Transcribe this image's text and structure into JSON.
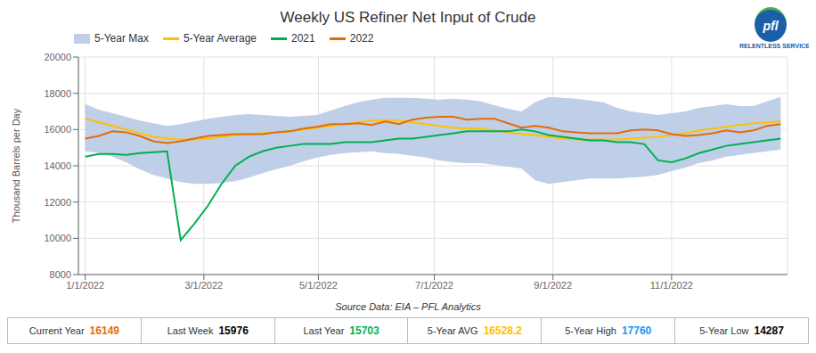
{
  "chart_data": {
    "type": "line",
    "title": "Weekly US Refiner Net Input of Crude",
    "ylabel": "Thousand Barrels per Day",
    "annotations": [
      "Source Data: EIA – PFL Analytics",
      "pfl",
      "RELENTLESS SERVICE"
    ],
    "x": [
      0,
      1,
      2,
      3,
      4,
      5,
      6,
      7,
      8,
      9,
      10,
      11,
      12,
      13,
      14,
      15,
      16,
      17,
      18,
      19,
      20,
      21,
      22,
      23,
      24,
      25,
      26,
      27,
      28,
      29,
      30,
      31,
      32,
      33,
      34,
      35,
      36,
      37,
      38,
      39,
      40,
      41,
      42,
      43,
      44,
      45,
      46,
      47,
      48,
      49,
      50,
      51
    ],
    "xlim": [
      -0.5,
      51.5
    ],
    "xticks": [
      {
        "value": 0,
        "label": "1/1/2022"
      },
      {
        "value": 8.7,
        "label": "3/1/2022"
      },
      {
        "value": 17.1,
        "label": "5/1/2022"
      },
      {
        "value": 25.6,
        "label": "7/1/2022"
      },
      {
        "value": 34.3,
        "label": "9/1/2022"
      },
      {
        "value": 43.0,
        "label": "11/1/2022"
      }
    ],
    "ylim": [
      8000,
      20000
    ],
    "yticks": [
      8000,
      10000,
      12000,
      14000,
      16000,
      18000,
      20000
    ],
    "grid": true,
    "legend": "top left",
    "series": [
      {
        "name": "5-Year Max",
        "type": "band",
        "color": "#bfcfe8",
        "values": [
          17400,
          17100,
          16900,
          16700,
          16500,
          16350,
          16200,
          16300,
          16450,
          16600,
          16700,
          16800,
          16850,
          16800,
          16750,
          16700,
          16750,
          16800,
          17050,
          17300,
          17500,
          17650,
          17750,
          17750,
          17750,
          17700,
          17650,
          17700,
          17650,
          17550,
          17350,
          17150,
          17000,
          17500,
          17800,
          17750,
          17700,
          17600,
          17500,
          17200,
          17000,
          16900,
          16800,
          16900,
          17000,
          17200,
          17300,
          17400,
          17300,
          17300,
          17550,
          17800
        ],
        "lower": [
          14800,
          14700,
          14500,
          14200,
          13800,
          13500,
          13300,
          13100,
          13000,
          13000,
          13050,
          13150,
          13350,
          13600,
          13800,
          14000,
          14250,
          14450,
          14600,
          14700,
          14750,
          14800,
          14700,
          14650,
          14550,
          14450,
          14300,
          14200,
          14150,
          14150,
          14050,
          13950,
          13850,
          13200,
          13000,
          13100,
          13200,
          13300,
          13300,
          13300,
          13350,
          13400,
          13500,
          13700,
          13900,
          14150,
          14300,
          14500,
          14600,
          14700,
          14800,
          14900
        ]
      },
      {
        "name": "5-Year Average",
        "type": "line",
        "color": "#FFC000",
        "values": [
          16600,
          16400,
          16200,
          16000,
          15800,
          15600,
          15500,
          15450,
          15450,
          15500,
          15600,
          15700,
          15750,
          15800,
          15850,
          15900,
          16000,
          16100,
          16200,
          16300,
          16400,
          16500,
          16500,
          16500,
          16400,
          16300,
          16200,
          16100,
          16050,
          16050,
          15950,
          15850,
          15750,
          15700,
          15600,
          15500,
          15450,
          15450,
          15450,
          15450,
          15500,
          15550,
          15600,
          15700,
          15800,
          15950,
          16050,
          16150,
          16250,
          16350,
          16400,
          16450
        ]
      },
      {
        "name": "2021",
        "type": "line",
        "color": "#00B050",
        "values": [
          14500,
          14650,
          14650,
          14600,
          14700,
          14750,
          14800,
          9900,
          10800,
          11800,
          13000,
          14000,
          14500,
          14800,
          15000,
          15100,
          15200,
          15200,
          15200,
          15300,
          15300,
          15300,
          15400,
          15500,
          15500,
          15600,
          15700,
          15800,
          15900,
          15900,
          15900,
          15900,
          16000,
          15900,
          15700,
          15600,
          15500,
          15400,
          15400,
          15300,
          15300,
          15200,
          14300,
          14200,
          14400,
          14700,
          14900,
          15100,
          15200,
          15300,
          15400,
          15500
        ]
      },
      {
        "name": "2022",
        "type": "line",
        "color": "#E36C09",
        "values": [
          15500,
          15650,
          15900,
          15850,
          15650,
          15350,
          15250,
          15350,
          15500,
          15650,
          15700,
          15750,
          15750,
          15750,
          15850,
          15900,
          16050,
          16150,
          16300,
          16300,
          16350,
          16250,
          16450,
          16300,
          16550,
          16650,
          16700,
          16700,
          16550,
          16600,
          16600,
          16350,
          16100,
          16200,
          16100,
          15900,
          15850,
          15800,
          15800,
          15800,
          15950,
          16000,
          15950,
          15750,
          15650,
          15700,
          15800,
          15950,
          15850,
          15950,
          16200,
          16300
        ]
      }
    ],
    "stats": [
      {
        "label": "Current Year",
        "value": 16149,
        "color": "#E36C09"
      },
      {
        "label": "Last Week",
        "value": 15976,
        "color": "#000000"
      },
      {
        "label": "Last Year",
        "value": 15703,
        "color": "#00B050"
      },
      {
        "label": "5-Year AVG",
        "value": 16528.2,
        "color": "#FFC000"
      },
      {
        "label": "5-Year High",
        "value": 17760,
        "color": "#2196F3"
      },
      {
        "label": "5-Year Low",
        "value": 14287,
        "color": "#000000"
      }
    ]
  }
}
